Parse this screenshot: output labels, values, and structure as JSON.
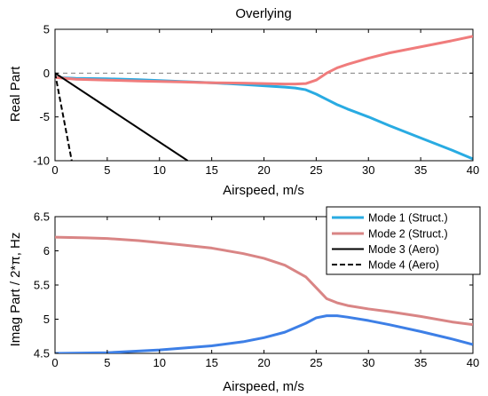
{
  "colors": {
    "mode1": "#29abe2",
    "mode2": "#f07c7c",
    "mode2_bottom": "#d98585",
    "mode1_bottom": "#3d7fe6",
    "mode3": "#000000",
    "mode4": "#000000",
    "zero_line": "#7f7f7f"
  },
  "chart_data": [
    {
      "type": "line",
      "title": "Overlying",
      "xlabel": "Airspeed, m/s",
      "ylabel": "Real Part",
      "xlim": [
        0,
        40
      ],
      "ylim": [
        -10,
        5
      ],
      "xticks": [
        0,
        5,
        10,
        15,
        20,
        25,
        30,
        35,
        40
      ],
      "yticks": [
        -10,
        -5,
        0,
        5
      ],
      "grid": false,
      "reference_line": {
        "y": 0,
        "style": "dashed"
      },
      "series": [
        {
          "name": "Mode 1 (Struct.)",
          "color_key": "mode1",
          "style": "solid",
          "x": [
            0,
            2,
            5,
            8,
            10,
            12,
            15,
            18,
            20,
            22,
            23,
            24,
            25,
            26,
            27,
            28,
            30,
            32,
            35,
            38,
            40
          ],
          "y": [
            -0.5,
            -0.6,
            -0.65,
            -0.75,
            -0.85,
            -0.95,
            -1.1,
            -1.3,
            -1.45,
            -1.6,
            -1.7,
            -1.9,
            -2.4,
            -3.0,
            -3.6,
            -4.1,
            -5.0,
            -6.0,
            -7.4,
            -8.8,
            -9.8
          ]
        },
        {
          "name": "Mode 2 (Struct.)",
          "color_key": "mode2",
          "style": "solid",
          "x": [
            0,
            2,
            5,
            8,
            10,
            12,
            15,
            18,
            20,
            22,
            23,
            24,
            25,
            26,
            27,
            28,
            30,
            32,
            35,
            38,
            40
          ],
          "y": [
            -0.5,
            -0.7,
            -0.8,
            -0.9,
            -0.95,
            -1.0,
            -1.1,
            -1.15,
            -1.2,
            -1.25,
            -1.25,
            -1.2,
            -0.8,
            0.0,
            0.6,
            1.0,
            1.7,
            2.3,
            3.0,
            3.7,
            4.2
          ]
        },
        {
          "name": "Mode 3 (Aero)",
          "color_key": "mode3",
          "style": "solid",
          "x": [
            0,
            12.7
          ],
          "y": [
            0,
            -10
          ]
        },
        {
          "name": "Mode 4 (Aero)",
          "color_key": "mode4",
          "style": "dashed",
          "x": [
            0,
            0.4,
            0.8,
            1.2,
            1.6
          ],
          "y": [
            0,
            -2.5,
            -5,
            -7.5,
            -10
          ]
        }
      ]
    },
    {
      "type": "line",
      "xlabel": "Airspeed, m/s",
      "ylabel": "Imag Part / 2*π, Hz",
      "xlim": [
        0,
        40
      ],
      "ylim": [
        4.5,
        6.5
      ],
      "xticks": [
        0,
        5,
        10,
        15,
        20,
        25,
        30,
        35,
        40
      ],
      "yticks": [
        4.5,
        5,
        5.5,
        6,
        6.5
      ],
      "grid": false,
      "legend": "top-right",
      "series": [
        {
          "name": "Mode 1 (Struct.)",
          "color_key": "mode1_bottom",
          "style": "solid",
          "x": [
            0,
            5,
            10,
            15,
            18,
            20,
            22,
            24,
            25,
            26,
            27,
            28,
            30,
            32,
            35,
            38,
            40
          ],
          "y": [
            4.5,
            4.51,
            4.55,
            4.61,
            4.67,
            4.73,
            4.81,
            4.94,
            5.02,
            5.05,
            5.05,
            5.03,
            4.98,
            4.92,
            4.82,
            4.71,
            4.63
          ]
        },
        {
          "name": "Mode 2 (Struct.)",
          "color_key": "mode2_bottom",
          "style": "solid",
          "x": [
            0,
            3,
            5,
            8,
            10,
            12,
            15,
            18,
            20,
            22,
            24,
            25,
            26,
            27,
            28,
            30,
            32,
            35,
            38,
            40
          ],
          "y": [
            6.2,
            6.19,
            6.18,
            6.15,
            6.12,
            6.09,
            6.04,
            5.96,
            5.89,
            5.79,
            5.62,
            5.46,
            5.3,
            5.24,
            5.2,
            5.15,
            5.11,
            5.04,
            4.96,
            4.92
          ]
        }
      ]
    }
  ],
  "legend_items": [
    {
      "label": "Mode 1 (Struct.)",
      "color_key": "mode1",
      "style": "solid"
    },
    {
      "label": "Mode 2 (Struct.)",
      "color_key": "mode2_bottom",
      "style": "solid"
    },
    {
      "label": "Mode 3 (Aero)",
      "color_key": "mode3",
      "style": "solid"
    },
    {
      "label": "Mode 4 (Aero)",
      "color_key": "mode4",
      "style": "dashed"
    }
  ]
}
